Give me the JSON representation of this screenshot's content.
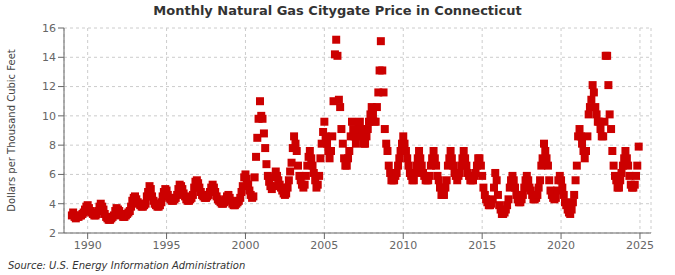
{
  "chart_data": {
    "type": "scatter",
    "title": "Monthly Natural Gas Citygate Price in Connecticut",
    "y_label": "Dollars per Thousand Cubic Feet",
    "annotations": [
      "Source: U.S. Energy Information Administration"
    ],
    "color": "#CC0000",
    "marker": "square",
    "grid": true,
    "xlim": [
      1988.5,
      2025.7
    ],
    "ylim": [
      2,
      16
    ],
    "xticks": [
      1990,
      1995,
      2000,
      2005,
      2010,
      2015,
      2020,
      2025
    ],
    "yticks": [
      2,
      4,
      6,
      8,
      10,
      12,
      14,
      16
    ],
    "x": [
      1989.0,
      1989.08,
      1989.17,
      1989.25,
      1989.33,
      1989.42,
      1989.5,
      1989.58,
      1989.67,
      1989.75,
      1989.83,
      1989.92,
      1990.0,
      1990.08,
      1990.17,
      1990.25,
      1990.33,
      1990.42,
      1990.5,
      1990.58,
      1990.67,
      1990.75,
      1990.83,
      1990.92,
      1991.0,
      1991.08,
      1991.17,
      1991.25,
      1991.33,
      1991.42,
      1991.5,
      1991.58,
      1991.67,
      1991.75,
      1991.83,
      1991.92,
      1992.0,
      1992.08,
      1992.17,
      1992.25,
      1992.33,
      1992.42,
      1992.5,
      1992.58,
      1992.67,
      1992.75,
      1992.83,
      1992.92,
      1993.0,
      1993.08,
      1993.17,
      1993.25,
      1993.33,
      1993.42,
      1993.5,
      1993.58,
      1993.67,
      1993.75,
      1993.83,
      1993.92,
      1994.0,
      1994.08,
      1994.17,
      1994.25,
      1994.33,
      1994.42,
      1994.5,
      1994.58,
      1994.67,
      1994.75,
      1994.83,
      1994.92,
      1995.0,
      1995.08,
      1995.17,
      1995.25,
      1995.33,
      1995.42,
      1995.5,
      1995.58,
      1995.67,
      1995.75,
      1995.83,
      1995.92,
      1996.0,
      1996.08,
      1996.17,
      1996.25,
      1996.33,
      1996.42,
      1996.5,
      1996.58,
      1996.67,
      1996.75,
      1996.83,
      1996.92,
      1997.0,
      1997.08,
      1997.17,
      1997.25,
      1997.33,
      1997.42,
      1997.5,
      1997.58,
      1997.67,
      1997.75,
      1997.83,
      1997.92,
      1998.0,
      1998.08,
      1998.17,
      1998.25,
      1998.33,
      1998.42,
      1998.5,
      1998.58,
      1998.67,
      1998.75,
      1998.83,
      1998.92,
      1999.0,
      1999.08,
      1999.17,
      1999.25,
      1999.33,
      1999.42,
      1999.5,
      1999.58,
      1999.67,
      1999.75,
      1999.83,
      1999.92,
      2000.0,
      2000.08,
      2000.17,
      2000.25,
      2000.33,
      2000.42,
      2000.5,
      2000.58,
      2000.67,
      2000.75,
      2000.83,
      2000.92,
      2001.0,
      2001.08,
      2001.17,
      2001.25,
      2001.33,
      2001.42,
      2001.5,
      2001.58,
      2001.67,
      2001.75,
      2001.83,
      2001.92,
      2002.0,
      2002.08,
      2002.17,
      2002.25,
      2002.33,
      2002.42,
      2002.5,
      2002.58,
      2002.67,
      2002.75,
      2002.83,
      2002.92,
      2003.0,
      2003.08,
      2003.17,
      2003.25,
      2003.33,
      2003.42,
      2003.5,
      2003.58,
      2003.67,
      2003.75,
      2003.83,
      2003.92,
      2004.0,
      2004.08,
      2004.17,
      2004.25,
      2004.33,
      2004.42,
      2004.5,
      2004.58,
      2004.67,
      2004.75,
      2004.83,
      2004.92,
      2005.0,
      2005.08,
      2005.17,
      2005.25,
      2005.33,
      2005.42,
      2005.5,
      2005.58,
      2005.67,
      2005.75,
      2005.83,
      2005.92,
      2006.0,
      2006.08,
      2006.17,
      2006.25,
      2006.33,
      2006.42,
      2006.5,
      2006.58,
      2006.67,
      2006.75,
      2006.83,
      2006.92,
      2007.0,
      2007.08,
      2007.17,
      2007.25,
      2007.33,
      2007.42,
      2007.5,
      2007.58,
      2007.67,
      2007.75,
      2007.83,
      2007.92,
      2008.0,
      2008.08,
      2008.17,
      2008.25,
      2008.33,
      2008.42,
      2008.5,
      2008.58,
      2008.67,
      2008.75,
      2008.83,
      2008.92,
      2009.0,
      2009.08,
      2009.17,
      2009.25,
      2009.33,
      2009.42,
      2009.5,
      2009.58,
      2009.67,
      2009.75,
      2009.83,
      2009.92,
      2010.0,
      2010.08,
      2010.17,
      2010.25,
      2010.33,
      2010.42,
      2010.5,
      2010.58,
      2010.67,
      2010.75,
      2010.83,
      2010.92,
      2011.0,
      2011.08,
      2011.17,
      2011.25,
      2011.33,
      2011.42,
      2011.5,
      2011.58,
      2011.67,
      2011.75,
      2011.83,
      2011.92,
      2012.0,
      2012.08,
      2012.17,
      2012.25,
      2012.33,
      2012.42,
      2012.5,
      2012.58,
      2012.67,
      2012.75,
      2012.83,
      2012.92,
      2013.0,
      2013.08,
      2013.17,
      2013.25,
      2013.33,
      2013.42,
      2013.5,
      2013.58,
      2013.67,
      2013.75,
      2013.83,
      2013.92,
      2014.0,
      2014.08,
      2014.17,
      2014.25,
      2014.33,
      2014.42,
      2014.5,
      2014.58,
      2014.67,
      2014.75,
      2014.83,
      2014.92,
      2015.0,
      2015.08,
      2015.17,
      2015.25,
      2015.33,
      2015.42,
      2015.5,
      2015.58,
      2015.67,
      2015.75,
      2015.83,
      2015.92,
      2016.0,
      2016.08,
      2016.17,
      2016.25,
      2016.33,
      2016.42,
      2016.5,
      2016.58,
      2016.67,
      2016.75,
      2016.83,
      2016.92,
      2017.0,
      2017.08,
      2017.17,
      2017.25,
      2017.33,
      2017.42,
      2017.5,
      2017.58,
      2017.67,
      2017.75,
      2017.83,
      2017.92,
      2018.0,
      2018.08,
      2018.17,
      2018.25,
      2018.33,
      2018.42,
      2018.5,
      2018.58,
      2018.67,
      2018.75,
      2018.83,
      2018.92,
      2019.0,
      2019.08,
      2019.17,
      2019.25,
      2019.33,
      2019.42,
      2019.5,
      2019.58,
      2019.67,
      2019.75,
      2019.83,
      2019.92,
      2020.0,
      2020.08,
      2020.17,
      2020.25,
      2020.33,
      2020.42,
      2020.5,
      2020.58,
      2020.67,
      2020.75,
      2020.83,
      2020.92,
      2021.0,
      2021.08,
      2021.17,
      2021.25,
      2021.33,
      2021.42,
      2021.5,
      2021.58,
      2021.67,
      2021.75,
      2021.83,
      2021.92,
      2022.0,
      2022.08,
      2022.17,
      2022.25,
      2022.33,
      2022.42,
      2022.5,
      2022.58,
      2022.67,
      2022.75,
      2022.83,
      2022.92,
      2023.0,
      2023.08,
      2023.17,
      2023.25,
      2023.33,
      2023.42,
      2023.5,
      2023.58,
      2023.67,
      2023.75,
      2023.83,
      2023.92,
      2024.0,
      2024.08,
      2024.17,
      2024.25,
      2024.33,
      2024.42,
      2024.5,
      2024.58,
      2024.67,
      2024.75,
      2024.83,
      2024.92
    ],
    "values": [
      3.2,
      3.4,
      3.1,
      3.0,
      3.1,
      3.1,
      3.2,
      3.2,
      3.3,
      3.4,
      3.6,
      3.8,
      3.9,
      3.7,
      3.5,
      3.4,
      3.3,
      3.2,
      3.2,
      3.3,
      3.5,
      3.8,
      4.0,
      3.8,
      3.6,
      3.3,
      3.1,
      3.0,
      2.9,
      2.9,
      3.0,
      3.1,
      3.2,
      3.5,
      3.7,
      3.6,
      3.5,
      3.3,
      3.2,
      3.1,
      3.1,
      3.2,
      3.3,
      3.4,
      3.5,
      3.8,
      4.2,
      4.4,
      4.5,
      4.3,
      4.1,
      4.0,
      3.9,
      3.8,
      3.8,
      3.9,
      4.0,
      4.5,
      4.8,
      5.2,
      5.0,
      4.5,
      4.2,
      4.0,
      3.9,
      3.8,
      3.8,
      3.9,
      4.1,
      4.5,
      4.8,
      5.0,
      4.9,
      4.6,
      4.4,
      4.3,
      4.2,
      4.2,
      4.3,
      4.4,
      4.6,
      5.0,
      5.3,
      5.2,
      5.0,
      4.7,
      4.5,
      4.3,
      4.2,
      4.2,
      4.3,
      4.4,
      4.6,
      5.1,
      5.5,
      5.6,
      5.4,
      5.1,
      4.8,
      4.6,
      4.5,
      4.4,
      4.4,
      4.5,
      4.6,
      4.8,
      5.1,
      5.3,
      5.1,
      4.8,
      4.5,
      4.3,
      4.2,
      4.1,
      4.0,
      4.0,
      4.1,
      4.3,
      4.5,
      4.6,
      4.4,
      4.2,
      4.0,
      3.9,
      3.9,
      4.0,
      4.1,
      4.2,
      4.4,
      4.8,
      5.2,
      5.8,
      6.0,
      5.7,
      5.3,
      4.9,
      4.6,
      4.4,
      4.5,
      5.8,
      7.2,
      8.5,
      9.8,
      11.0,
      10.0,
      9.8,
      8.8,
      7.8,
      6.7,
      5.9,
      5.5,
      5.2,
      5.0,
      5.2,
      5.8,
      6.2,
      5.9,
      5.6,
      5.3,
      5.1,
      4.9,
      4.7,
      4.6,
      4.7,
      5.1,
      5.6,
      6.2,
      6.8,
      7.8,
      8.6,
      8.1,
      7.6,
      6.6,
      5.9,
      5.6,
      5.3,
      5.1,
      5.3,
      5.9,
      6.6,
      7.2,
      7.6,
      7.1,
      6.6,
      6.1,
      5.6,
      5.1,
      5.3,
      5.9,
      7.1,
      8.1,
      8.9,
      9.6,
      8.6,
      8.1,
      7.6,
      7.1,
      7.6,
      8.6,
      11.0,
      14.2,
      15.2,
      14.1,
      11.1,
      10.6,
      9.1,
      8.1,
      7.1,
      6.6,
      6.6,
      7.1,
      7.6,
      8.6,
      9.6,
      9.1,
      8.6,
      8.1,
      8.6,
      9.1,
      9.6,
      9.1,
      8.6,
      8.1,
      8.1,
      8.6,
      9.1,
      9.6,
      10.1,
      10.6,
      10.1,
      9.6,
      9.6,
      10.6,
      11.6,
      13.1,
      15.1,
      13.1,
      11.6,
      9.1,
      8.1,
      7.6,
      6.6,
      6.1,
      5.6,
      5.6,
      5.6,
      5.9,
      6.1,
      6.6,
      7.1,
      7.6,
      8.1,
      8.6,
      8.1,
      7.6,
      7.1,
      6.6,
      6.1,
      5.9,
      5.6,
      5.6,
      6.1,
      6.6,
      7.1,
      7.6,
      7.1,
      6.6,
      6.1,
      5.9,
      5.6,
      5.6,
      5.6,
      5.9,
      6.6,
      7.1,
      7.6,
      7.1,
      6.6,
      5.9,
      5.6,
      5.1,
      4.6,
      4.6,
      4.6,
      5.1,
      5.6,
      6.6,
      7.1,
      7.6,
      7.1,
      6.6,
      6.1,
      5.9,
      5.6,
      5.9,
      6.1,
      6.6,
      7.1,
      7.6,
      7.1,
      6.6,
      6.1,
      5.9,
      5.6,
      5.6,
      5.6,
      5.9,
      6.1,
      6.6,
      7.1,
      7.1,
      6.6,
      5.9,
      5.1,
      4.6,
      4.3,
      4.1,
      3.9,
      3.9,
      4.0,
      4.3,
      5.1,
      6.1,
      5.6,
      4.6,
      3.9,
      3.6,
      3.3,
      3.3,
      3.4,
      3.6,
      3.9,
      4.3,
      5.1,
      5.6,
      5.9,
      5.6,
      5.1,
      4.6,
      4.3,
      4.1,
      4.1,
      4.3,
      4.6,
      5.1,
      5.6,
      5.9,
      5.6,
      5.1,
      4.9,
      4.6,
      4.3,
      4.3,
      4.4,
      4.6,
      5.1,
      5.6,
      6.6,
      7.1,
      8.1,
      7.6,
      7.1,
      6.6,
      5.6,
      4.9,
      4.6,
      4.4,
      4.3,
      4.4,
      4.9,
      5.6,
      5.9,
      5.6,
      5.1,
      4.6,
      4.1,
      3.9,
      3.6,
      3.4,
      3.3,
      3.6,
      4.1,
      4.6,
      5.6,
      6.6,
      8.6,
      9.1,
      8.6,
      8.1,
      7.6,
      7.1,
      7.6,
      8.6,
      10.1,
      10.6,
      11.1,
      12.1,
      11.6,
      10.6,
      10.1,
      9.6,
      9.6,
      9.1,
      8.6,
      8.6,
      9.6,
      14.1,
      14.1,
      12.1,
      10.1,
      9.1,
      7.6,
      6.6,
      5.9,
      5.6,
      5.1,
      5.1,
      5.6,
      6.1,
      6.6,
      7.1,
      7.6,
      7.1,
      6.6,
      5.9,
      5.3,
      5.1,
      5.1,
      5.3,
      5.9,
      6.6,
      7.9
    ]
  }
}
